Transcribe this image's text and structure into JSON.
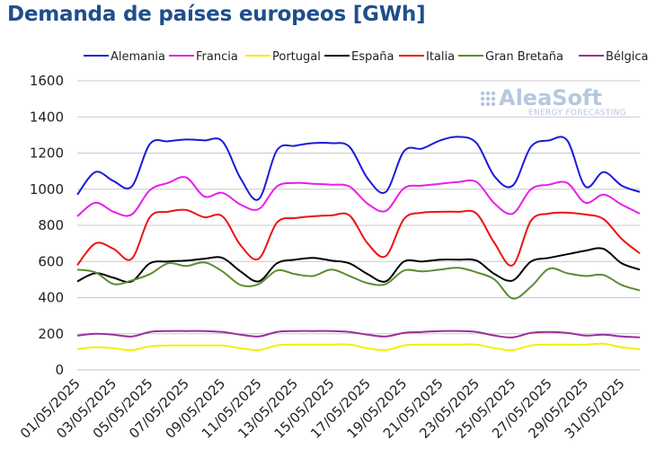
{
  "chart_data": {
    "type": "line",
    "title": "Demanda de países europeos [GWh]",
    "xlabel": "",
    "ylabel": "",
    "ylim": [
      0,
      1600
    ],
    "yticks": [
      0,
      200,
      400,
      600,
      800,
      1000,
      1200,
      1400,
      1600
    ],
    "grid": "horizontal",
    "legend_position": "top",
    "watermark": {
      "main": "AleaSoft",
      "sub": "ENERGY FORECASTING"
    },
    "x_tick_labels": [
      "01/05/2025",
      "03/05/2025",
      "05/05/2025",
      "07/05/2025",
      "09/05/2025",
      "11/05/2025",
      "13/05/2025",
      "15/05/2025",
      "17/05/2025",
      "19/05/2025",
      "21/05/2025",
      "23/05/2025",
      "25/05/2025",
      "27/05/2025",
      "29/05/2025",
      "31/05/2025"
    ],
    "x_start": "2025-05-01",
    "x_end": "2025-06-01",
    "series": [
      {
        "name": "Alemania",
        "color": "#1a1adb",
        "points": [
          [
            "2025-05-01",
            970
          ],
          [
            "2025-05-02",
            1095
          ],
          [
            "2025-05-03",
            1045
          ],
          [
            "2025-05-04",
            1015
          ],
          [
            "2025-05-05",
            1250
          ],
          [
            "2025-05-06",
            1265
          ],
          [
            "2025-05-07",
            1275
          ],
          [
            "2025-05-08",
            1270
          ],
          [
            "2025-05-09",
            1265
          ],
          [
            "2025-05-10",
            1060
          ],
          [
            "2025-05-11",
            945
          ],
          [
            "2025-05-12",
            1215
          ],
          [
            "2025-05-13",
            1240
          ],
          [
            "2025-05-14",
            1255
          ],
          [
            "2025-05-15",
            1255
          ],
          [
            "2025-05-16",
            1235
          ],
          [
            "2025-05-17",
            1060
          ],
          [
            "2025-05-18",
            985
          ],
          [
            "2025-05-19",
            1210
          ],
          [
            "2025-05-20",
            1225
          ],
          [
            "2025-05-21",
            1270
          ],
          [
            "2025-05-22",
            1290
          ],
          [
            "2025-05-23",
            1255
          ],
          [
            "2025-05-24",
            1070
          ],
          [
            "2025-05-25",
            1020
          ],
          [
            "2025-05-26",
            1235
          ],
          [
            "2025-05-27",
            1270
          ],
          [
            "2025-05-28",
            1270
          ],
          [
            "2025-05-29",
            1015
          ],
          [
            "2025-05-30",
            1095
          ],
          [
            "2025-05-31",
            1020
          ],
          [
            "2025-06-01",
            985
          ]
        ]
      },
      {
        "name": "Francia",
        "color": "#e81ee8",
        "points": [
          [
            "2025-05-01",
            850
          ],
          [
            "2025-05-02",
            925
          ],
          [
            "2025-05-03",
            875
          ],
          [
            "2025-05-04",
            860
          ],
          [
            "2025-05-05",
            995
          ],
          [
            "2025-05-06",
            1035
          ],
          [
            "2025-05-07",
            1065
          ],
          [
            "2025-05-08",
            960
          ],
          [
            "2025-05-09",
            980
          ],
          [
            "2025-05-10",
            915
          ],
          [
            "2025-05-11",
            890
          ],
          [
            "2025-05-12",
            1015
          ],
          [
            "2025-05-13",
            1035
          ],
          [
            "2025-05-14",
            1030
          ],
          [
            "2025-05-15",
            1025
          ],
          [
            "2025-05-16",
            1015
          ],
          [
            "2025-05-17",
            920
          ],
          [
            "2025-05-18",
            880
          ],
          [
            "2025-05-19",
            1005
          ],
          [
            "2025-05-20",
            1020
          ],
          [
            "2025-05-21",
            1030
          ],
          [
            "2025-05-22",
            1040
          ],
          [
            "2025-05-23",
            1040
          ],
          [
            "2025-05-24",
            920
          ],
          [
            "2025-05-25",
            865
          ],
          [
            "2025-05-26",
            1000
          ],
          [
            "2025-05-27",
            1025
          ],
          [
            "2025-05-28",
            1035
          ],
          [
            "2025-05-29",
            925
          ],
          [
            "2025-05-30",
            970
          ],
          [
            "2025-05-31",
            915
          ],
          [
            "2025-06-01",
            865
          ]
        ]
      },
      {
        "name": "Portugal",
        "color": "#f0f000",
        "points": [
          [
            "2025-05-01",
            115
          ],
          [
            "2025-05-02",
            125
          ],
          [
            "2025-05-03",
            120
          ],
          [
            "2025-05-04",
            110
          ],
          [
            "2025-05-05",
            130
          ],
          [
            "2025-05-06",
            135
          ],
          [
            "2025-05-07",
            135
          ],
          [
            "2025-05-08",
            135
          ],
          [
            "2025-05-09",
            135
          ],
          [
            "2025-05-10",
            120
          ],
          [
            "2025-05-11",
            110
          ],
          [
            "2025-05-12",
            135
          ],
          [
            "2025-05-13",
            140
          ],
          [
            "2025-05-14",
            140
          ],
          [
            "2025-05-15",
            140
          ],
          [
            "2025-05-16",
            140
          ],
          [
            "2025-05-17",
            120
          ],
          [
            "2025-05-18",
            110
          ],
          [
            "2025-05-19",
            135
          ],
          [
            "2025-05-20",
            140
          ],
          [
            "2025-05-21",
            140
          ],
          [
            "2025-05-22",
            140
          ],
          [
            "2025-05-23",
            140
          ],
          [
            "2025-05-24",
            120
          ],
          [
            "2025-05-25",
            110
          ],
          [
            "2025-05-26",
            135
          ],
          [
            "2025-05-27",
            140
          ],
          [
            "2025-05-28",
            140
          ],
          [
            "2025-05-29",
            140
          ],
          [
            "2025-05-30",
            145
          ],
          [
            "2025-05-31",
            125
          ],
          [
            "2025-06-01",
            115
          ]
        ]
      },
      {
        "name": "España",
        "color": "#000000",
        "points": [
          [
            "2025-05-01",
            490
          ],
          [
            "2025-05-02",
            535
          ],
          [
            "2025-05-03",
            510
          ],
          [
            "2025-05-04",
            490
          ],
          [
            "2025-05-05",
            590
          ],
          [
            "2025-05-06",
            600
          ],
          [
            "2025-05-07",
            605
          ],
          [
            "2025-05-08",
            615
          ],
          [
            "2025-05-09",
            620
          ],
          [
            "2025-05-10",
            545
          ],
          [
            "2025-05-11",
            490
          ],
          [
            "2025-05-12",
            590
          ],
          [
            "2025-05-13",
            610
          ],
          [
            "2025-05-14",
            620
          ],
          [
            "2025-05-15",
            605
          ],
          [
            "2025-05-16",
            590
          ],
          [
            "2025-05-17",
            530
          ],
          [
            "2025-05-18",
            490
          ],
          [
            "2025-05-19",
            600
          ],
          [
            "2025-05-20",
            600
          ],
          [
            "2025-05-21",
            610
          ],
          [
            "2025-05-22",
            610
          ],
          [
            "2025-05-23",
            605
          ],
          [
            "2025-05-24",
            530
          ],
          [
            "2025-05-25",
            495
          ],
          [
            "2025-05-26",
            600
          ],
          [
            "2025-05-27",
            620
          ],
          [
            "2025-05-28",
            640
          ],
          [
            "2025-05-29",
            660
          ],
          [
            "2025-05-30",
            670
          ],
          [
            "2025-05-31",
            590
          ],
          [
            "2025-06-01",
            555
          ]
        ]
      },
      {
        "name": "Italia",
        "color": "#ee1111",
        "points": [
          [
            "2025-05-01",
            580
          ],
          [
            "2025-05-02",
            700
          ],
          [
            "2025-05-03",
            670
          ],
          [
            "2025-05-04",
            615
          ],
          [
            "2025-05-05",
            845
          ],
          [
            "2025-05-06",
            875
          ],
          [
            "2025-05-07",
            885
          ],
          [
            "2025-05-08",
            845
          ],
          [
            "2025-05-09",
            850
          ],
          [
            "2025-05-10",
            690
          ],
          [
            "2025-05-11",
            615
          ],
          [
            "2025-05-12",
            815
          ],
          [
            "2025-05-13",
            840
          ],
          [
            "2025-05-14",
            850
          ],
          [
            "2025-05-15",
            855
          ],
          [
            "2025-05-16",
            855
          ],
          [
            "2025-05-17",
            700
          ],
          [
            "2025-05-18",
            630
          ],
          [
            "2025-05-19",
            835
          ],
          [
            "2025-05-20",
            870
          ],
          [
            "2025-05-21",
            875
          ],
          [
            "2025-05-22",
            875
          ],
          [
            "2025-05-23",
            865
          ],
          [
            "2025-05-24",
            700
          ],
          [
            "2025-05-25",
            580
          ],
          [
            "2025-05-26",
            825
          ],
          [
            "2025-05-27",
            865
          ],
          [
            "2025-05-28",
            870
          ],
          [
            "2025-05-29",
            860
          ],
          [
            "2025-05-30",
            835
          ],
          [
            "2025-05-31",
            725
          ],
          [
            "2025-06-01",
            645
          ]
        ]
      },
      {
        "name": "Gran Bretaña",
        "color": "#5b8c32",
        "points": [
          [
            "2025-05-01",
            555
          ],
          [
            "2025-05-02",
            540
          ],
          [
            "2025-05-03",
            475
          ],
          [
            "2025-05-04",
            495
          ],
          [
            "2025-05-05",
            530
          ],
          [
            "2025-05-06",
            590
          ],
          [
            "2025-05-07",
            575
          ],
          [
            "2025-05-08",
            595
          ],
          [
            "2025-05-09",
            545
          ],
          [
            "2025-05-10",
            470
          ],
          [
            "2025-05-11",
            475
          ],
          [
            "2025-05-12",
            550
          ],
          [
            "2025-05-13",
            530
          ],
          [
            "2025-05-14",
            520
          ],
          [
            "2025-05-15",
            555
          ],
          [
            "2025-05-16",
            520
          ],
          [
            "2025-05-17",
            480
          ],
          [
            "2025-05-18",
            475
          ],
          [
            "2025-05-19",
            550
          ],
          [
            "2025-05-20",
            545
          ],
          [
            "2025-05-21",
            555
          ],
          [
            "2025-05-22",
            565
          ],
          [
            "2025-05-23",
            540
          ],
          [
            "2025-05-24",
            500
          ],
          [
            "2025-05-25",
            395
          ],
          [
            "2025-05-26",
            460
          ],
          [
            "2025-05-27",
            560
          ],
          [
            "2025-05-28",
            535
          ],
          [
            "2025-05-29",
            520
          ],
          [
            "2025-05-30",
            525
          ],
          [
            "2025-05-31",
            470
          ],
          [
            "2025-06-01",
            440
          ]
        ]
      },
      {
        "name": "Bélgica",
        "color": "#9b2d9b",
        "points": [
          [
            "2025-05-01",
            190
          ],
          [
            "2025-05-02",
            200
          ],
          [
            "2025-05-03",
            195
          ],
          [
            "2025-05-04",
            185
          ],
          [
            "2025-05-05",
            210
          ],
          [
            "2025-05-06",
            215
          ],
          [
            "2025-05-07",
            215
          ],
          [
            "2025-05-08",
            215
          ],
          [
            "2025-05-09",
            210
          ],
          [
            "2025-05-10",
            195
          ],
          [
            "2025-05-11",
            185
          ],
          [
            "2025-05-12",
            210
          ],
          [
            "2025-05-13",
            215
          ],
          [
            "2025-05-14",
            215
          ],
          [
            "2025-05-15",
            215
          ],
          [
            "2025-05-16",
            210
          ],
          [
            "2025-05-17",
            195
          ],
          [
            "2025-05-18",
            185
          ],
          [
            "2025-05-19",
            205
          ],
          [
            "2025-05-20",
            210
          ],
          [
            "2025-05-21",
            215
          ],
          [
            "2025-05-22",
            215
          ],
          [
            "2025-05-23",
            210
          ],
          [
            "2025-05-24",
            190
          ],
          [
            "2025-05-25",
            180
          ],
          [
            "2025-05-26",
            205
          ],
          [
            "2025-05-27",
            210
          ],
          [
            "2025-05-28",
            205
          ],
          [
            "2025-05-29",
            190
          ],
          [
            "2025-05-30",
            195
          ],
          [
            "2025-05-31",
            185
          ],
          [
            "2025-06-01",
            180
          ]
        ]
      }
    ]
  }
}
